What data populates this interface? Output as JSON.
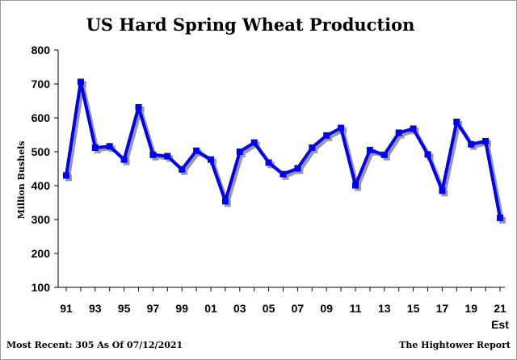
{
  "chart_data": {
    "type": "line",
    "title": "US Hard Spring Wheat Production",
    "ylabel": "Million Bushels",
    "xlabel": "",
    "ylim": [
      100,
      800
    ],
    "yticks": [
      100,
      200,
      300,
      400,
      500,
      600,
      700,
      800
    ],
    "x_tick_labels": [
      "91",
      "93",
      "95",
      "97",
      "99",
      "01",
      "03",
      "05",
      "07",
      "09",
      "11",
      "13",
      "15",
      "17",
      "19",
      "21"
    ],
    "x_extra_label": "Est",
    "x": [
      1991,
      1992,
      1993,
      1994,
      1995,
      1996,
      1997,
      1998,
      1999,
      2000,
      2001,
      2002,
      2003,
      2004,
      2005,
      2006,
      2007,
      2008,
      2009,
      2010,
      2011,
      2012,
      2013,
      2014,
      2015,
      2016,
      2017,
      2018,
      2019,
      2020,
      2021
    ],
    "values": [
      430,
      706,
      512,
      516,
      477,
      631,
      491,
      487,
      448,
      503,
      477,
      354,
      500,
      527,
      468,
      434,
      451,
      512,
      548,
      570,
      401,
      505,
      491,
      556,
      568,
      492,
      385,
      588,
      522,
      531,
      305
    ],
    "grid": false,
    "line_color": "#0000ee",
    "shadow_color": "#9a9a9a",
    "footer_left": "Most Recent: 305 As Of 07/12/2021",
    "footer_right": "The Hightower Report"
  }
}
